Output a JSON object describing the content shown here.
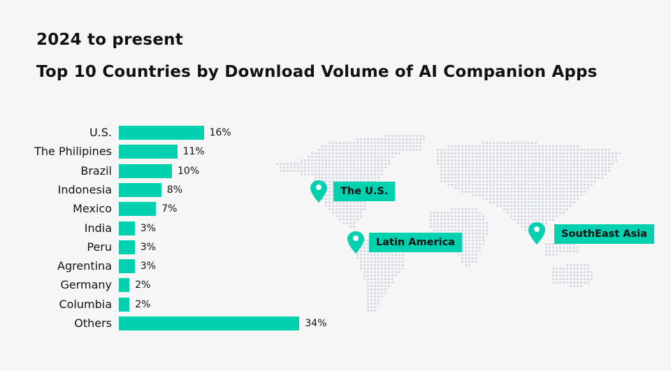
{
  "header": {
    "subtitle": "2024 to present",
    "title": "Top 10 Countries by Download Volume of AI Companion Apps"
  },
  "chart_data": {
    "type": "bar",
    "orientation": "horizontal",
    "categories": [
      "U.S.",
      "The Philipines",
      "Brazil",
      "Indonesia",
      "Mexico",
      "India",
      "Peru",
      "Agrentina",
      "Germany",
      "Columbia",
      "Others"
    ],
    "values": [
      16,
      11,
      10,
      8,
      7,
      3,
      3,
      3,
      2,
      2,
      34
    ],
    "labels": [
      "16%",
      "11%",
      "10%",
      "8%",
      "7%",
      "3%",
      "3%",
      "3%",
      "2%",
      "2%",
      "34%"
    ],
    "unit": "%",
    "bar_color": "#02d1af",
    "grid": false
  },
  "map": {
    "dot_color": "#d6dae6",
    "pin_color": "#02d1af",
    "markers": [
      {
        "label": "The U.S."
      },
      {
        "label": "Latin America"
      },
      {
        "label": "SouthEast Asia"
      }
    ]
  }
}
